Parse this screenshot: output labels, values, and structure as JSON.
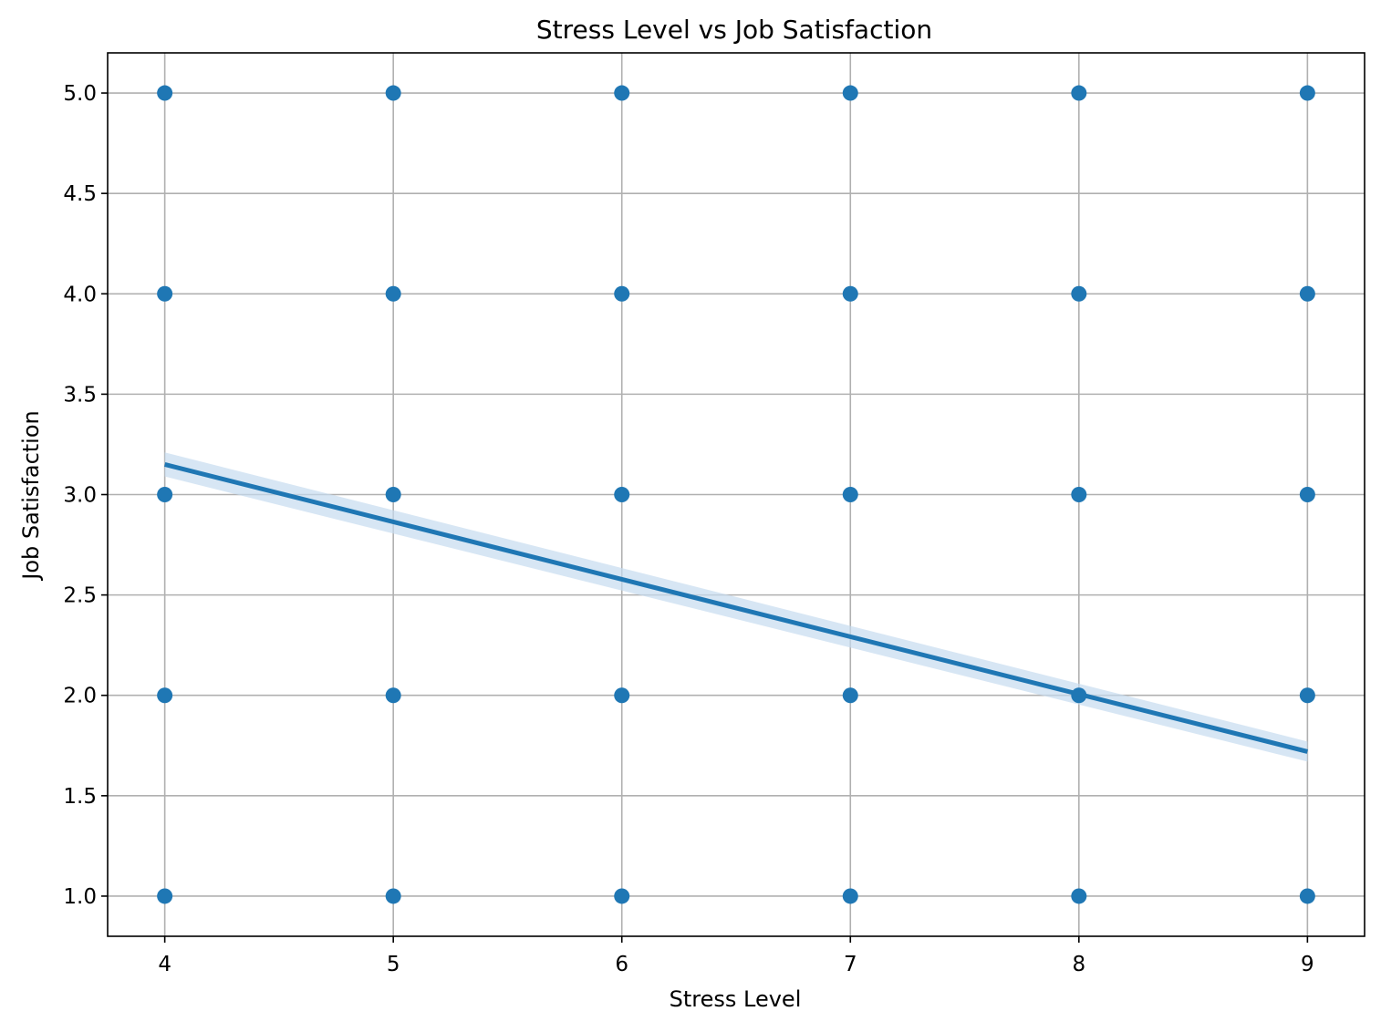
{
  "chart_data": {
    "type": "scatter",
    "title": "Stress Level vs Job Satisfaction",
    "xlabel": "Stress Level",
    "ylabel": "Job Satisfaction",
    "xlim": [
      3.75,
      9.25
    ],
    "ylim": [
      0.8,
      5.2
    ],
    "x_ticks": [
      4,
      5,
      6,
      7,
      8,
      9
    ],
    "y_ticks": [
      1.0,
      1.5,
      2.0,
      2.5,
      3.0,
      3.5,
      4.0,
      4.5,
      5.0
    ],
    "x_tick_labels": [
      "4",
      "5",
      "6",
      "7",
      "8",
      "9"
    ],
    "y_tick_labels": [
      "1.0",
      "1.5",
      "2.0",
      "2.5",
      "3.0",
      "3.5",
      "4.0",
      "4.5",
      "5.0"
    ],
    "grid": true,
    "point_color": "#1f77b4",
    "points": [
      {
        "x": 4,
        "y": 1
      },
      {
        "x": 4,
        "y": 2
      },
      {
        "x": 4,
        "y": 3
      },
      {
        "x": 4,
        "y": 4
      },
      {
        "x": 4,
        "y": 5
      },
      {
        "x": 5,
        "y": 1
      },
      {
        "x": 5,
        "y": 2
      },
      {
        "x": 5,
        "y": 3
      },
      {
        "x": 5,
        "y": 4
      },
      {
        "x": 5,
        "y": 5
      },
      {
        "x": 6,
        "y": 1
      },
      {
        "x": 6,
        "y": 2
      },
      {
        "x": 6,
        "y": 3
      },
      {
        "x": 6,
        "y": 4
      },
      {
        "x": 6,
        "y": 5
      },
      {
        "x": 7,
        "y": 1
      },
      {
        "x": 7,
        "y": 2
      },
      {
        "x": 7,
        "y": 3
      },
      {
        "x": 7,
        "y": 4
      },
      {
        "x": 7,
        "y": 5
      },
      {
        "x": 8,
        "y": 1
      },
      {
        "x": 8,
        "y": 2
      },
      {
        "x": 8,
        "y": 3
      },
      {
        "x": 8,
        "y": 4
      },
      {
        "x": 8,
        "y": 5
      },
      {
        "x": 9,
        "y": 1
      },
      {
        "x": 9,
        "y": 2
      },
      {
        "x": 9,
        "y": 3
      },
      {
        "x": 9,
        "y": 4
      },
      {
        "x": 9,
        "y": 5
      }
    ],
    "regression_line": {
      "x": [
        4,
        9
      ],
      "y": [
        3.15,
        1.72
      ],
      "ci_upper": [
        3.21,
        1.77
      ],
      "ci_lower": [
        3.09,
        1.67
      ],
      "color": "#1f77b4",
      "band_color": "#c6dbef"
    }
  }
}
